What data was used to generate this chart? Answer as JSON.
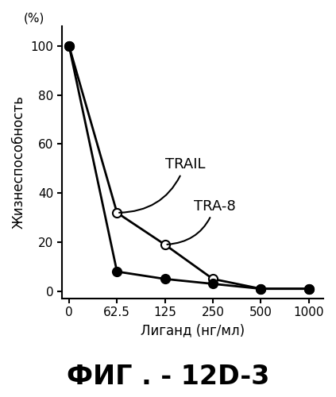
{
  "trail_x_idx": [
    0,
    1,
    2,
    3,
    4,
    5
  ],
  "trail_y": [
    100,
    32,
    19,
    5,
    1,
    1
  ],
  "tra8_x_idx": [
    0,
    1,
    2,
    3,
    4,
    5
  ],
  "tra8_y": [
    100,
    8,
    5,
    3,
    1,
    1
  ],
  "xlabel": "Лиганд (нг/мл)",
  "ylabel": "Жизнеспособность",
  "ylabel_pct": "(%)",
  "xtick_labels": [
    "0",
    "62.5",
    "125",
    "250",
    "500",
    "1000"
  ],
  "xtick_positions": [
    0,
    1,
    2,
    3,
    4,
    5
  ],
  "ytick_positions": [
    0,
    20,
    40,
    60,
    80,
    100
  ],
  "ytick_labels": [
    "0",
    "20",
    "40",
    "60",
    "80",
    "100"
  ],
  "trail_label": "TRAIL",
  "tra8_label": "TRA-8",
  "fig_label": "ФИГ . - 12D-3",
  "ylim": [
    -3,
    108
  ],
  "xlim": [
    -0.15,
    5.3
  ],
  "bg_color": "#ffffff",
  "line_color": "#000000",
  "trail_marker": "o",
  "tra8_marker": "o",
  "trail_markerfacecolor": "white",
  "tra8_markerfacecolor": "black",
  "markersize": 8,
  "linewidth": 2.0,
  "annotation_fontsize": 13,
  "label_fontsize": 12,
  "tick_fontsize": 11,
  "fig_label_fontsize": 24
}
